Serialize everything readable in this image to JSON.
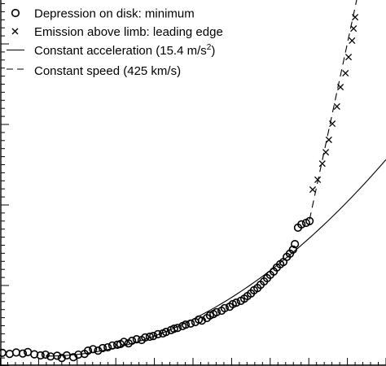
{
  "chart_data": {
    "type": "scatter",
    "title": "",
    "xlabel": "",
    "ylabel": "",
    "xlim": [
      0,
      100
    ],
    "ylim": [
      0,
      100
    ],
    "grid": false,
    "legend_position": "top-left",
    "series": [
      {
        "name": "Depression on disk: minimum",
        "marker": "circle",
        "line": "none",
        "points": [
          [
            0.6,
            3.6
          ],
          [
            2.5,
            3.3
          ],
          [
            4.2,
            3.7
          ],
          [
            5.9,
            3.4
          ],
          [
            7.2,
            3.8
          ],
          [
            8.9,
            3.2
          ],
          [
            10.5,
            2.9
          ],
          [
            11.8,
            3.1
          ],
          [
            13.1,
            2.6
          ],
          [
            14.8,
            2.8
          ],
          [
            16.0,
            2.2
          ],
          [
            17.3,
            2.9
          ],
          [
            19.0,
            2.4
          ],
          [
            20.3,
            3.1
          ],
          [
            21.9,
            3.3
          ],
          [
            22.8,
            4.2
          ],
          [
            24.1,
            4.6
          ],
          [
            25.4,
            4.2
          ],
          [
            26.6,
            4.9
          ],
          [
            27.9,
            5.1
          ],
          [
            29.1,
            5.6
          ],
          [
            30.4,
            5.8
          ],
          [
            31.2,
            6.0
          ],
          [
            32.1,
            6.6
          ],
          [
            33.3,
            6.2
          ],
          [
            34.2,
            6.9
          ],
          [
            35.4,
            7.3
          ],
          [
            36.7,
            7.1
          ],
          [
            37.6,
            7.8
          ],
          [
            38.8,
            8.0
          ],
          [
            39.7,
            8.2
          ],
          [
            40.9,
            8.7
          ],
          [
            42.2,
            8.9
          ],
          [
            43.0,
            9.3
          ],
          [
            44.3,
            9.8
          ],
          [
            45.1,
            10.2
          ],
          [
            46.0,
            10.4
          ],
          [
            47.3,
            10.9
          ],
          [
            48.1,
            11.3
          ],
          [
            49.4,
            11.6
          ],
          [
            50.6,
            12.0
          ],
          [
            51.5,
            12.7
          ],
          [
            52.3,
            12.4
          ],
          [
            53.6,
            13.1
          ],
          [
            54.4,
            13.8
          ],
          [
            55.3,
            14.2
          ],
          [
            56.1,
            14.7
          ],
          [
            57.4,
            15.1
          ],
          [
            58.2,
            15.8
          ],
          [
            59.5,
            16.2
          ],
          [
            60.3,
            16.9
          ],
          [
            61.2,
            17.3
          ],
          [
            62.4,
            17.8
          ],
          [
            63.3,
            18.4
          ],
          [
            64.1,
            19.1
          ],
          [
            65.0,
            19.8
          ],
          [
            65.8,
            20.7
          ],
          [
            66.7,
            21.3
          ],
          [
            67.5,
            22.2
          ],
          [
            68.4,
            23.1
          ],
          [
            69.2,
            24.0
          ],
          [
            70.0,
            24.9
          ],
          [
            70.9,
            25.8
          ],
          [
            71.7,
            26.9
          ],
          [
            72.6,
            27.8
          ],
          [
            73.4,
            28.4
          ],
          [
            74.3,
            29.8
          ],
          [
            75.1,
            30.7
          ],
          [
            75.9,
            31.8
          ],
          [
            76.4,
            33.3
          ],
          [
            77.2,
            37.8
          ],
          [
            78.1,
            38.7
          ],
          [
            79.3,
            39.1
          ],
          [
            80.2,
            39.6
          ]
        ]
      },
      {
        "name": "Emission above limb: leading edge",
        "marker": "cross",
        "line": "none",
        "points": [
          [
            81.0,
            48.2
          ],
          [
            82.3,
            50.9
          ],
          [
            83.5,
            55.3
          ],
          [
            84.4,
            58.4
          ],
          [
            85.2,
            61.8
          ],
          [
            86.1,
            66.2
          ],
          [
            87.3,
            70.9
          ],
          [
            88.2,
            76.2
          ],
          [
            89.5,
            80.0
          ],
          [
            90.3,
            84.4
          ],
          [
            91.2,
            88.9
          ],
          [
            91.6,
            92.2
          ],
          [
            92.0,
            95.3
          ]
        ]
      },
      {
        "name": "Constant acceleration (15.4 m/s²)",
        "label_main": "Constant acceleration (15.4 m/s",
        "label_sup": "2",
        "label_close": ")",
        "marker": "none",
        "line": "solid",
        "curve": {
          "form": "quadratic",
          "x0": 11.8,
          "y0": 2.7,
          "x_end": 100,
          "y_end": 56.4
        }
      },
      {
        "name": "Constant speed (425 km/s)",
        "marker": "none",
        "line": "dashed",
        "curve": {
          "form": "linear",
          "x_start": 80.2,
          "y_start": 40.0,
          "x_end": 92.4,
          "y_end": 100
        }
      }
    ]
  }
}
